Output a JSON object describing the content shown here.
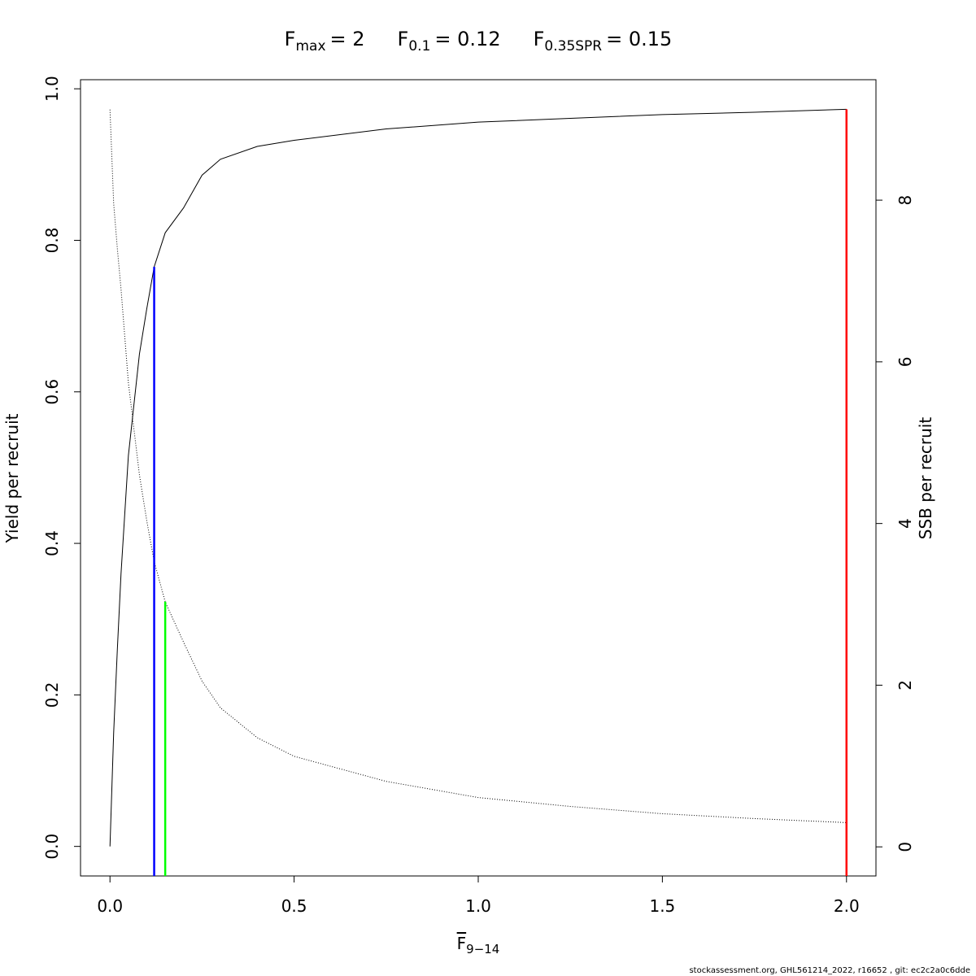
{
  "chart_data": {
    "type": "line",
    "title_parts": [
      {
        "text": "F",
        "subscript": "max",
        "value_label": "= 2",
        "value": 2,
        "color": "#ff0000",
        "top": 0.973
      },
      {
        "text": "F",
        "subscript": "0.1",
        "value_label": "= 0.12",
        "value": 0.12,
        "color": "#0000ff",
        "top": 0.765
      },
      {
        "text": "F",
        "subscript": "0.35SPR",
        "value_label": "= 0.15",
        "value": 0.15,
        "color": "#00ff00",
        "top": 0.323
      }
    ],
    "x_label": "F",
    "x_label_subscript": "9−14",
    "y_label": "Yield per recruit",
    "y2_label": "SSB per recruit",
    "footer": "stockassessment.org, GHL561214_2022, r16652 , git: ec2c2a0c6dde",
    "x": [
      0,
      0.01,
      0.02,
      0.03,
      0.05,
      0.08,
      0.1,
      0.12,
      0.15,
      0.2,
      0.25,
      0.3,
      0.4,
      0.5,
      0.75,
      1,
      1.25,
      1.5,
      1.75,
      2
    ],
    "series": [
      {
        "name": "Yield per recruit",
        "color": "#000000",
        "dash": "solid",
        "axis": "y",
        "values": [
          0,
          0.15,
          0.26,
          0.36,
          0.516,
          0.65,
          0.71,
          0.765,
          0.81,
          0.843,
          0.886,
          0.907,
          0.924,
          0.932,
          0.947,
          0.956,
          0.961,
          0.966,
          0.969,
          0.973
        ]
      },
      {
        "name": "SSB per recruit",
        "color": "#000000",
        "dash": "dotted",
        "axis": "y2",
        "values": [
          9.12,
          7.96,
          7.4,
          6.9,
          5.74,
          4.6,
          4.03,
          3.53,
          3.03,
          2.53,
          2.05,
          1.72,
          1.35,
          1.12,
          0.81,
          0.61,
          0.5,
          0.41,
          0.35,
          0.3
        ]
      }
    ],
    "xlim": [
      -0.08,
      2.08
    ],
    "ylim": [
      -0.039,
      1.012
    ],
    "y2lim": [
      -0.36,
      9.49
    ],
    "xticks": [
      {
        "value": 0,
        "label": "0.0"
      },
      {
        "value": 0.5,
        "label": "0.5"
      },
      {
        "value": 1,
        "label": "1.0"
      },
      {
        "value": 1.5,
        "label": "1.5"
      },
      {
        "value": 2,
        "label": "2.0"
      }
    ],
    "yticks": [
      {
        "value": 0,
        "label": "0.0"
      },
      {
        "value": 0.2,
        "label": "0.2"
      },
      {
        "value": 0.4,
        "label": "0.4"
      },
      {
        "value": 0.6,
        "label": "0.6"
      },
      {
        "value": 0.8,
        "label": "0.8"
      },
      {
        "value": 1,
        "label": "1.0"
      }
    ],
    "y2ticks": [
      0,
      2,
      4,
      6,
      8
    ],
    "grid": false
  }
}
